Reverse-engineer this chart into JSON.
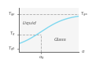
{
  "curve_color": "#7fd8f0",
  "background_color": "#ffffff",
  "plot_bg_color": "#f5f5f5",
  "dashed_color": "#aaaaaa",
  "axis_color": "#666666",
  "text_color": "#555555",
  "xlim": [
    0,
    1.0
  ],
  "ylim": [
    0,
    1.0
  ],
  "Tg0": 0.07,
  "Tg_mid": 0.4,
  "Tginf": 0.85,
  "alphag": 0.38,
  "region_liquid": "Liquid",
  "region_glass": "Glass",
  "sigmoid_k": 4.5
}
